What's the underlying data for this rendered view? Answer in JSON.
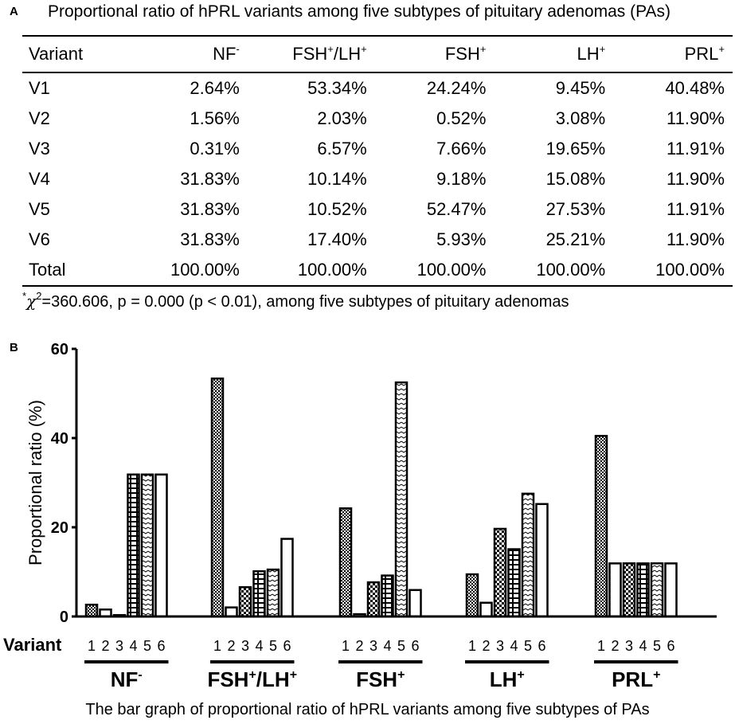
{
  "panel_a": {
    "label": "A",
    "title": "Proportional ratio of hPRL variants among five subtypes of pituitary adenomas (PAs)",
    "table": {
      "headers": [
        {
          "base": "Variant",
          "sup": ""
        },
        {
          "base": "NF",
          "sup": "-"
        },
        {
          "base": "FSH",
          "sup": "+",
          "base2": "/LH",
          "sup2": "+"
        },
        {
          "base": "FSH",
          "sup": "+"
        },
        {
          "base": "LH",
          "sup": "+"
        },
        {
          "base": "PRL",
          "sup": "+"
        }
      ],
      "rows": [
        [
          "V1",
          "2.64%",
          "53.34%",
          "24.24%",
          "9.45%",
          "40.48%"
        ],
        [
          "V2",
          "1.56%",
          "2.03%",
          "0.52%",
          "3.08%",
          "11.90%"
        ],
        [
          "V3",
          "0.31%",
          "6.57%",
          "7.66%",
          "19.65%",
          "11.91%"
        ],
        [
          "V4",
          "31.83%",
          "10.14%",
          "9.18%",
          "15.08%",
          "11.90%"
        ],
        [
          "V5",
          "31.83%",
          "10.52%",
          "52.47%",
          "27.53%",
          "11.91%"
        ],
        [
          "V6",
          "31.83%",
          "17.40%",
          "5.93%",
          "25.21%",
          "11.90%"
        ],
        [
          "Total",
          "100.00%",
          "100.00%",
          "100.00%",
          "100.00%",
          "100.00%"
        ]
      ]
    },
    "footnote": {
      "star": "*",
      "chi": "χ",
      "exp": "2",
      "text": "=360.606, p = 0.000 (p < 0.01), among five subtypes of pituitary adenomas"
    }
  },
  "panel_b": {
    "label": "B",
    "caption": "The bar graph of proportional ratio of hPRL variants among five subtypes of PAs"
  },
  "chart_data": {
    "type": "bar",
    "ylabel": "Proportional ratio (%)",
    "xlabel": "Variant",
    "ylim": [
      0,
      60
    ],
    "yticks": [
      0,
      20,
      40,
      60
    ],
    "variant_ticks": [
      "1",
      "2",
      "3",
      "4",
      "5",
      "6"
    ],
    "groups": [
      {
        "name": "NF",
        "sup": "-",
        "values": [
          2.64,
          1.56,
          0.31,
          31.83,
          31.83,
          31.83
        ]
      },
      {
        "name": "FSH",
        "sup": "+",
        "name2": "/LH",
        "sup2": "+",
        "values": [
          53.34,
          2.03,
          6.57,
          10.14,
          10.52,
          17.4
        ]
      },
      {
        "name": "FSH",
        "sup": "+",
        "values": [
          24.24,
          0.52,
          7.66,
          9.18,
          52.47,
          5.93
        ]
      },
      {
        "name": "LH",
        "sup": "+",
        "values": [
          9.45,
          3.08,
          19.65,
          15.08,
          27.53,
          25.21
        ]
      },
      {
        "name": "PRL",
        "sup": "+",
        "values": [
          40.48,
          11.9,
          11.91,
          11.9,
          11.91,
          11.9
        ]
      }
    ],
    "series": [
      "V1",
      "V2",
      "V3",
      "V4",
      "V5",
      "V6"
    ]
  }
}
